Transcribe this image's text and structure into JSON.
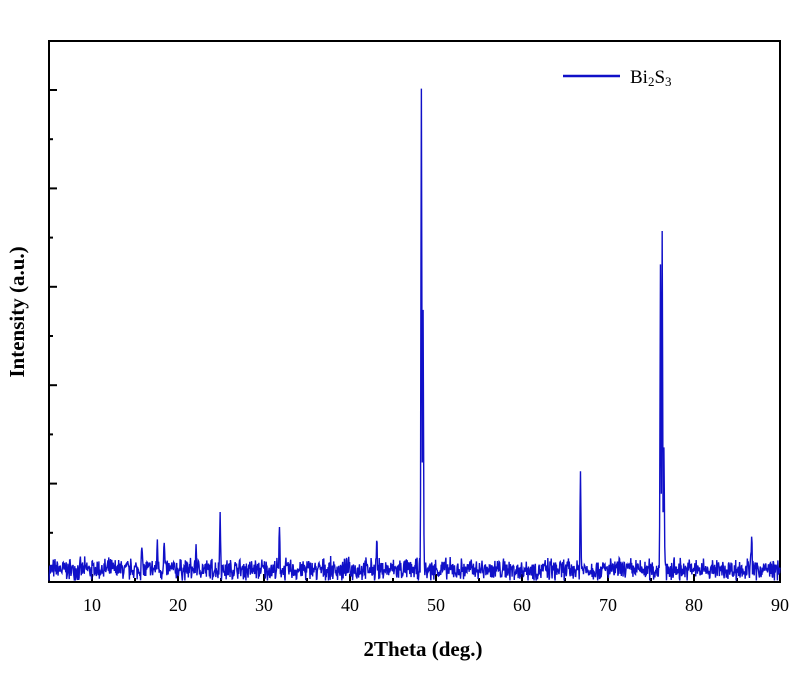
{
  "chart_data": {
    "type": "line",
    "xlabel": "2Theta (deg.)",
    "ylabel": "Intensity (a.u.)",
    "xlim": [
      5,
      90
    ],
    "xticks": [
      10,
      20,
      30,
      40,
      50,
      60,
      70,
      80,
      90
    ],
    "ylim": [
      0,
      1.1
    ],
    "y_tick_labels_shown": false,
    "grid": false,
    "legend_position": "top-right",
    "color": "#1010c8",
    "series": [
      {
        "name": "Bi2S3",
        "legend_base": "Bi",
        "legend_sub1": "2",
        "legend_mid": "S",
        "legend_sub2": "3",
        "baseline": 0.025,
        "noise": 0.02,
        "peaks": [
          {
            "x": 15.8,
            "y": 0.05
          },
          {
            "x": 17.6,
            "y": 0.06
          },
          {
            "x": 18.4,
            "y": 0.055
          },
          {
            "x": 22.1,
            "y": 0.05
          },
          {
            "x": 24.9,
            "y": 0.12
          },
          {
            "x": 31.8,
            "y": 0.075
          },
          {
            "x": 43.1,
            "y": 0.06
          },
          {
            "x": 48.3,
            "y": 1.0
          },
          {
            "x": 48.5,
            "y": 0.51
          },
          {
            "x": 66.8,
            "y": 0.2
          },
          {
            "x": 76.1,
            "y": 0.63
          },
          {
            "x": 76.3,
            "y": 0.7
          },
          {
            "x": 76.5,
            "y": 0.25
          },
          {
            "x": 86.7,
            "y": 0.08
          }
        ]
      }
    ]
  }
}
